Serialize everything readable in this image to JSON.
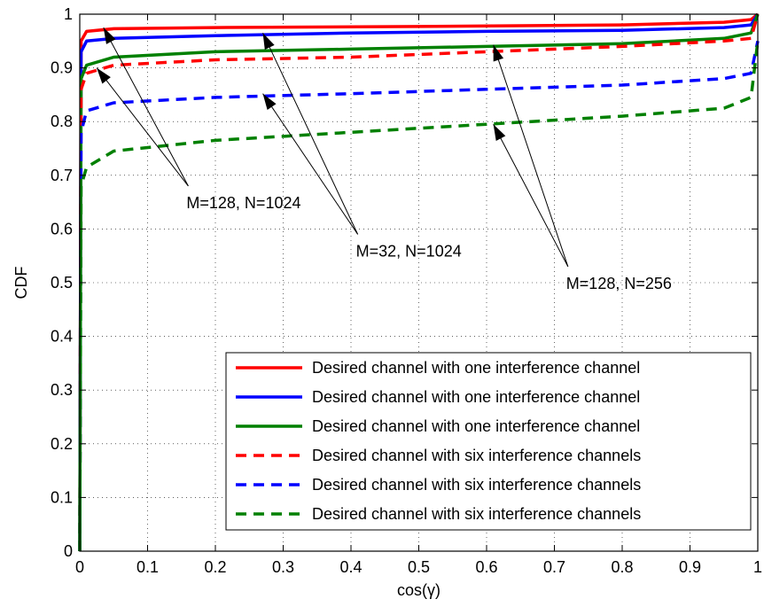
{
  "chart_data": {
    "type": "line",
    "xlabel": "cos(γ)",
    "ylabel": "CDF",
    "xlim": [
      0,
      1
    ],
    "ylim": [
      0,
      1
    ],
    "xticks": [
      "0",
      "0.1",
      "0.2",
      "0.3",
      "0.4",
      "0.5",
      "0.6",
      "0.7",
      "0.8",
      "0.9",
      "1"
    ],
    "yticks": [
      "0",
      "0.1",
      "0.2",
      "0.3",
      "0.4",
      "0.5",
      "0.6",
      "0.7",
      "0.8",
      "0.9",
      "1"
    ],
    "grid": true,
    "legend_position": "bottom-right",
    "series": [
      {
        "name": "Desired channel with one interference channel",
        "color": "#ff0000",
        "style": "solid",
        "points": [
          [
            0,
            0
          ],
          [
            0.002,
            0.95
          ],
          [
            0.01,
            0.968
          ],
          [
            0.05,
            0.973
          ],
          [
            0.2,
            0.975
          ],
          [
            0.5,
            0.977
          ],
          [
            0.8,
            0.98
          ],
          [
            0.95,
            0.985
          ],
          [
            0.99,
            0.99
          ],
          [
            1,
            1
          ]
        ]
      },
      {
        "name": "Desired channel with one interference channel",
        "color": "#0000ff",
        "style": "solid",
        "points": [
          [
            0,
            0
          ],
          [
            0.002,
            0.93
          ],
          [
            0.01,
            0.95
          ],
          [
            0.05,
            0.955
          ],
          [
            0.2,
            0.96
          ],
          [
            0.4,
            0.965
          ],
          [
            0.6,
            0.968
          ],
          [
            0.8,
            0.97
          ],
          [
            0.95,
            0.975
          ],
          [
            0.99,
            0.98
          ],
          [
            1,
            1
          ]
        ]
      },
      {
        "name": "Desired channel with one interference channel",
        "color": "#008000",
        "style": "solid",
        "points": [
          [
            0,
            0
          ],
          [
            0.002,
            0.88
          ],
          [
            0.01,
            0.905
          ],
          [
            0.05,
            0.92
          ],
          [
            0.2,
            0.93
          ],
          [
            0.4,
            0.935
          ],
          [
            0.6,
            0.94
          ],
          [
            0.8,
            0.945
          ],
          [
            0.95,
            0.955
          ],
          [
            0.99,
            0.965
          ],
          [
            1,
            1
          ]
        ]
      },
      {
        "name": "Desired channel with six interference channels",
        "color": "#ff0000",
        "style": "dashed",
        "points": [
          [
            0,
            0
          ],
          [
            0.002,
            0.86
          ],
          [
            0.01,
            0.89
          ],
          [
            0.05,
            0.905
          ],
          [
            0.2,
            0.915
          ],
          [
            0.4,
            0.92
          ],
          [
            0.6,
            0.93
          ],
          [
            0.8,
            0.94
          ],
          [
            0.95,
            0.95
          ],
          [
            0.99,
            0.955
          ],
          [
            1,
            1
          ]
        ]
      },
      {
        "name": "Desired channel with six interference channels",
        "color": "#0000ff",
        "style": "dashed",
        "points": [
          [
            0,
            0
          ],
          [
            0.002,
            0.78
          ],
          [
            0.01,
            0.82
          ],
          [
            0.05,
            0.835
          ],
          [
            0.2,
            0.845
          ],
          [
            0.4,
            0.852
          ],
          [
            0.6,
            0.86
          ],
          [
            0.8,
            0.868
          ],
          [
            0.95,
            0.88
          ],
          [
            0.99,
            0.89
          ],
          [
            1,
            0.95
          ]
        ]
      },
      {
        "name": "Desired channel with six interference channels",
        "color": "#008000",
        "style": "dashed",
        "points": [
          [
            0,
            0
          ],
          [
            0.002,
            0.68
          ],
          [
            0.01,
            0.715
          ],
          [
            0.05,
            0.745
          ],
          [
            0.2,
            0.765
          ],
          [
            0.4,
            0.78
          ],
          [
            0.6,
            0.795
          ],
          [
            0.8,
            0.81
          ],
          [
            0.95,
            0.825
          ],
          [
            0.99,
            0.845
          ],
          [
            1,
            0.95
          ]
        ]
      }
    ],
    "annotations": [
      {
        "text": "M=128, N=1024",
        "anchor": [
          0.16,
          0.68
        ],
        "targets": [
          [
            0.035,
            0.975
          ],
          [
            0.025,
            0.9
          ]
        ]
      },
      {
        "text": "M=32, N=1024",
        "anchor": [
          0.41,
          0.59
        ],
        "targets": [
          [
            0.27,
            0.965
          ],
          [
            0.27,
            0.852
          ]
        ]
      },
      {
        "text": "M=128, N=256",
        "anchor": [
          0.72,
          0.53
        ],
        "targets": [
          [
            0.61,
            0.943
          ],
          [
            0.61,
            0.795
          ]
        ]
      }
    ]
  }
}
